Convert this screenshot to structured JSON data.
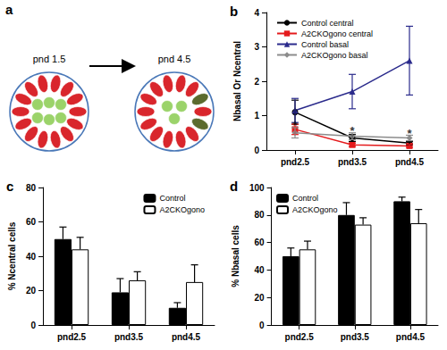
{
  "diagram": {
    "label": "a",
    "stages": [
      "pnd 1.5",
      "pnd 4.5"
    ]
  },
  "chart_data": [
    {
      "type": "line",
      "title": "b",
      "categories": [
        "pnd2.5",
        "pnd3.5",
        "pnd4.5"
      ],
      "y_label": "Nbasal Or Ncentral",
      "ylim": [
        0,
        4
      ],
      "yticks": [
        0,
        1,
        2,
        3,
        4
      ],
      "legend": "upper left",
      "series": [
        {
          "name": "Control central",
          "color": "#000000",
          "marker": "circle",
          "values": [
            1.1,
            0.35,
            0.2
          ],
          "errors": [
            0.35,
            0.1,
            0.05
          ]
        },
        {
          "name": "A2CKOgono central",
          "color": "#e41a1c",
          "marker": "square",
          "values": [
            0.6,
            0.15,
            0.12
          ],
          "errors": [
            0.15,
            0.05,
            0.04
          ]
        },
        {
          "name": "Control basal",
          "color": "#2b2b8c",
          "marker": "triangle",
          "values": [
            1.15,
            1.7,
            2.6
          ],
          "errors": [
            0.35,
            0.5,
            1.0
          ]
        },
        {
          "name": "A2CKOgono basal",
          "color": "#8c8c8c",
          "marker": "diamond",
          "values": [
            0.5,
            0.4,
            0.35
          ],
          "errors": [
            0.15,
            0.1,
            0.08
          ]
        }
      ],
      "annotations": [
        {
          "text": "*",
          "x": "pnd2.5",
          "y": 0.72
        },
        {
          "text": "*",
          "x": "pnd3.5",
          "y": 0.55
        },
        {
          "text": "*",
          "x": "pnd4.5",
          "y": 0.48
        }
      ]
    },
    {
      "type": "bar",
      "title": "c",
      "categories": [
        "pnd2.5",
        "pnd3.5",
        "pnd4.5"
      ],
      "y_label": "% Ncentral cells",
      "ylim": [
        0,
        80
      ],
      "yticks": [
        0,
        20,
        40,
        60,
        80
      ],
      "legend": "upper right",
      "series": [
        {
          "name": "Control",
          "color": "#000000",
          "values": [
            50,
            19,
            10
          ],
          "errors": [
            7,
            8,
            3
          ]
        },
        {
          "name": "A2CKOgono",
          "color": "#ffffff",
          "values": [
            44,
            26,
            25
          ],
          "errors": [
            7,
            5,
            10
          ]
        }
      ]
    },
    {
      "type": "bar",
      "title": "d",
      "categories": [
        "pnd2.5",
        "pnd3.5",
        "pnd4.5"
      ],
      "y_label": "% Nbasal cells",
      "ylim": [
        0,
        100
      ],
      "yticks": [
        0,
        20,
        40,
        60,
        80,
        100
      ],
      "legend": "upper left",
      "series": [
        {
          "name": "Control",
          "color": "#000000",
          "values": [
            50,
            80,
            90
          ],
          "errors": [
            6,
            9,
            3
          ]
        },
        {
          "name": "A2CKOgono",
          "color": "#ffffff",
          "values": [
            55,
            73,
            74
          ],
          "errors": [
            6,
            5,
            10
          ]
        }
      ]
    }
  ]
}
